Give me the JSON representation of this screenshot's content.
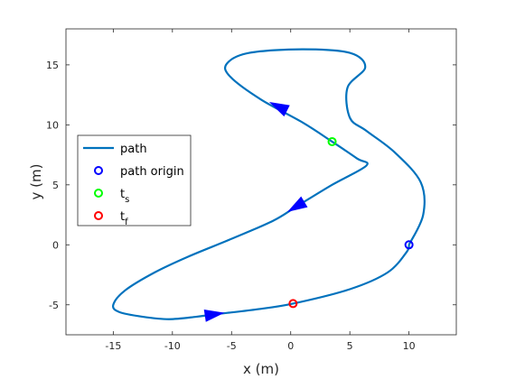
{
  "chart_data": {
    "type": "line",
    "xlabel": "x (m)",
    "ylabel": "y (m)",
    "xlim": [
      -19,
      14
    ],
    "ylim": [
      -7.5,
      18
    ],
    "xticks": [
      -15,
      -10,
      -5,
      0,
      5,
      10
    ],
    "yticks": [
      -5,
      0,
      5,
      10,
      15
    ],
    "grid": false,
    "legend_position": "center-left",
    "series": [
      {
        "name": "path",
        "kind": "line",
        "color": "#0072BD",
        "points": [
          [
            10,
            0
          ],
          [
            11.2,
            2.5
          ],
          [
            11.0,
            5.2
          ],
          [
            8.8,
            7.7
          ],
          [
            6.4,
            9.5
          ],
          [
            5.0,
            10.6
          ],
          [
            4.8,
            13.1
          ],
          [
            6.3,
            14.8
          ],
          [
            5.0,
            16.0
          ],
          [
            1.0,
            16.3
          ],
          [
            -3.5,
            16.0
          ],
          [
            -5.4,
            15.1
          ],
          [
            -5.1,
            14.0
          ],
          [
            -2.5,
            12.1
          ],
          [
            1.0,
            10.2
          ],
          [
            3.5,
            8.6
          ],
          [
            5.6,
            7.2
          ],
          [
            6.4,
            6.6
          ],
          [
            3.5,
            5.0
          ],
          [
            0.5,
            3.2
          ],
          [
            -1.5,
            2.0
          ],
          [
            -5,
            0.5
          ],
          [
            -8.7,
            -1.0
          ],
          [
            -11.5,
            -2.3
          ],
          [
            -14.0,
            -3.8
          ],
          [
            -15.0,
            -5.0
          ],
          [
            -14.5,
            -5.6
          ],
          [
            -12.5,
            -6.0
          ],
          [
            -10.3,
            -6.2
          ],
          [
            -8.0,
            -6.0
          ],
          [
            -6.5,
            -5.8
          ],
          [
            -3.0,
            -5.4
          ],
          [
            0.2,
            -4.9
          ],
          [
            5.0,
            -3.7
          ],
          [
            8.2,
            -2.3
          ],
          [
            9.8,
            -0.6
          ],
          [
            10,
            0
          ]
        ]
      },
      {
        "name": "path origin",
        "kind": "marker",
        "color": "#0000FF",
        "points": [
          [
            10,
            0
          ]
        ]
      },
      {
        "name": "t",
        "subscript": "s",
        "kind": "marker",
        "color": "#00FF00",
        "points": [
          [
            3.5,
            8.6
          ]
        ]
      },
      {
        "name": "t",
        "subscript": "f",
        "kind": "marker",
        "color": "#FF0000",
        "points": [
          [
            0.2,
            -4.9
          ]
        ]
      }
    ],
    "arrows": [
      {
        "at": [
          -1.0,
          11.5
        ],
        "direction": [
          -1.7,
          0.85
        ]
      },
      {
        "at": [
          0.5,
          3.2
        ],
        "direction": [
          -2.0,
          -1.2
        ]
      },
      {
        "at": [
          -6.5,
          -5.8
        ],
        "direction": [
          2.0,
          0.3
        ]
      }
    ]
  }
}
